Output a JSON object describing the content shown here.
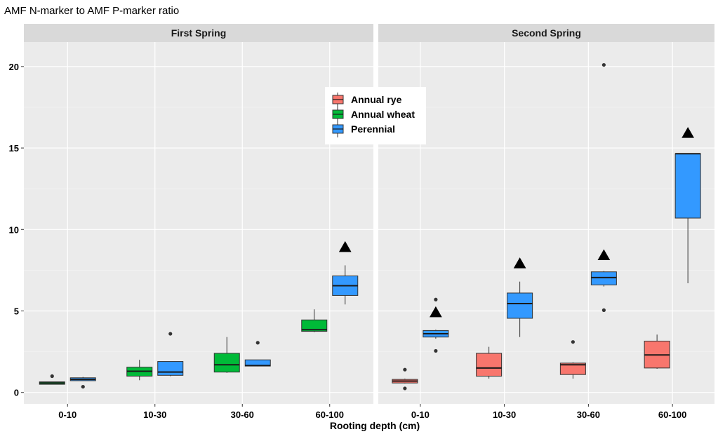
{
  "chart_data": {
    "type": "boxplot",
    "title": "AMF N-marker to AMF P-marker ratio",
    "xlabel": "Rooting depth (cm)",
    "ylabel": "",
    "ylim": [
      -0.7,
      21.5
    ],
    "yticks": [
      0,
      5,
      10,
      15,
      20
    ],
    "categories": [
      "0-10",
      "10-30",
      "30-60",
      "60-100"
    ],
    "grid": true,
    "legend": {
      "position": "inside-top-center",
      "entries": [
        {
          "name": "Annual rye",
          "color": "#F8766D"
        },
        {
          "name": "Annual wheat",
          "color": "#00BA38"
        },
        {
          "name": "Perennial",
          "color": "#3399FF"
        }
      ]
    },
    "significance_marker": "▲",
    "panels": [
      {
        "title": "First Spring",
        "groups": [
          {
            "category": "0-10",
            "series": "Annual wheat",
            "min": 0.5,
            "q1": 0.5,
            "median": 0.58,
            "q3": 0.65,
            "max": 0.65,
            "outliers": [
              1.0
            ]
          },
          {
            "category": "0-10",
            "series": "Perennial",
            "min": 0.7,
            "q1": 0.72,
            "median": 0.8,
            "q3": 0.9,
            "max": 0.95,
            "outliers": [
              0.35
            ]
          },
          {
            "category": "10-30",
            "series": "Annual wheat",
            "min": 0.75,
            "q1": 1.0,
            "median": 1.3,
            "q3": 1.55,
            "max": 2.0,
            "outliers": []
          },
          {
            "category": "10-30",
            "series": "Perennial",
            "min": 1.0,
            "q1": 1.05,
            "median": 1.25,
            "q3": 1.9,
            "max": 1.9,
            "outliers": [
              3.6
            ]
          },
          {
            "category": "30-60",
            "series": "Annual wheat",
            "min": 1.2,
            "q1": 1.25,
            "median": 1.7,
            "q3": 2.4,
            "max": 3.4,
            "outliers": []
          },
          {
            "category": "30-60",
            "series": "Perennial",
            "min": 1.6,
            "q1": 1.62,
            "median": 1.65,
            "q3": 2.0,
            "max": 2.0,
            "outliers": [
              3.05
            ]
          },
          {
            "category": "60-100",
            "series": "Annual wheat",
            "min": 3.7,
            "q1": 3.75,
            "median": 3.85,
            "q3": 4.45,
            "max": 5.1,
            "outliers": []
          },
          {
            "category": "60-100",
            "series": "Perennial",
            "min": 5.4,
            "q1": 5.95,
            "median": 6.55,
            "q3": 7.15,
            "max": 7.8,
            "outliers": [],
            "significance_y": 8.9
          }
        ]
      },
      {
        "title": "Second Spring",
        "groups": [
          {
            "category": "0-10",
            "series": "Annual rye",
            "min": 0.55,
            "q1": 0.58,
            "median": 0.7,
            "q3": 0.8,
            "max": 0.85,
            "outliers": [
              1.4,
              0.25
            ]
          },
          {
            "category": "0-10",
            "series": "Perennial",
            "min": 3.3,
            "q1": 3.4,
            "median": 3.6,
            "q3": 3.8,
            "max": 3.85,
            "outliers": [
              5.7,
              2.55
            ],
            "significance_y": 4.9
          },
          {
            "category": "10-30",
            "series": "Annual rye",
            "min": 0.85,
            "q1": 1.0,
            "median": 1.5,
            "q3": 2.4,
            "max": 2.8,
            "outliers": []
          },
          {
            "category": "10-30",
            "series": "Perennial",
            "min": 3.4,
            "q1": 4.55,
            "median": 5.45,
            "q3": 6.1,
            "max": 6.8,
            "outliers": [],
            "significance_y": 7.9
          },
          {
            "category": "30-60",
            "series": "Annual rye",
            "min": 0.85,
            "q1": 1.1,
            "median": 1.7,
            "q3": 1.8,
            "max": 1.85,
            "outliers": [
              3.1
            ]
          },
          {
            "category": "30-60",
            "series": "Perennial",
            "min": 6.5,
            "q1": 6.6,
            "median": 7.05,
            "q3": 7.4,
            "max": 7.45,
            "outliers": [
              20.1,
              5.05
            ],
            "significance_y": 8.4
          },
          {
            "category": "60-100",
            "series": "Annual rye",
            "min": 1.45,
            "q1": 1.5,
            "median": 2.3,
            "q3": 3.15,
            "max": 3.55,
            "outliers": []
          },
          {
            "category": "60-100",
            "series": "Perennial",
            "min": 6.7,
            "q1": 10.7,
            "median": 14.65,
            "q3": 14.65,
            "max": 14.65,
            "outliers": [],
            "significance_y": 15.9
          }
        ]
      }
    ]
  }
}
